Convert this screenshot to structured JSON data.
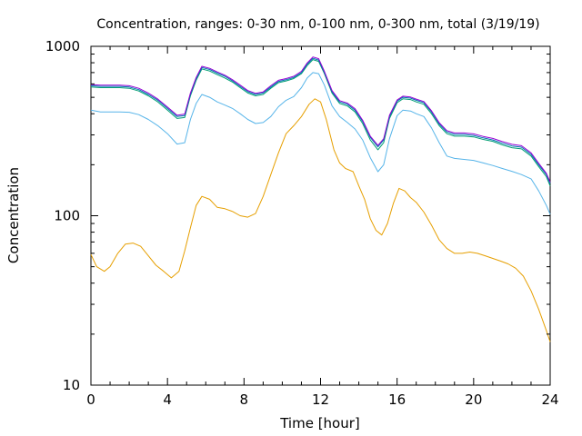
{
  "chart_data": {
    "type": "line",
    "title": "Concentration, ranges: 0-30 nm, 0-100 nm, 0-300 nm, total (3/19/19)",
    "xlabel": "Time [hour]",
    "ylabel": "Concentration",
    "xlim": [
      0,
      24
    ],
    "ylim": [
      10,
      1000
    ],
    "yscale": "log",
    "grid": false,
    "legend": "none",
    "x_ticks": [
      0,
      4,
      8,
      12,
      16,
      20,
      24
    ],
    "x_tick_labels": [
      "0",
      "4",
      "8",
      "12",
      "16",
      "20",
      "24"
    ],
    "y_ticks": [
      10,
      100,
      1000
    ],
    "y_tick_labels": [
      "10",
      "100",
      "1000"
    ],
    "series": [
      {
        "color": "#e69f00",
        "x": [
          0,
          0.3,
          0.7,
          1.0,
          1.4,
          1.8,
          2.2,
          2.6,
          3.0,
          3.4,
          3.8,
          4.2,
          4.6,
          4.9,
          5.2,
          5.5,
          5.8,
          6.2,
          6.6,
          7.0,
          7.4,
          7.8,
          8.2,
          8.6,
          9.0,
          9.4,
          9.8,
          10.2,
          10.6,
          11.0,
          11.4,
          11.7,
          12.0,
          12.3,
          12.7,
          13.0,
          13.3,
          13.7,
          14.0,
          14.3,
          14.6,
          14.9,
          15.2,
          15.5,
          15.8,
          16.1,
          16.4,
          16.7,
          17.0,
          17.4,
          17.8,
          18.2,
          18.6,
          19.0,
          19.4,
          19.8,
          20.2,
          20.6,
          21.0,
          21.4,
          21.8,
          22.2,
          22.6,
          23.0,
          23.4,
          23.8,
          24.0
        ],
        "values": [
          59,
          50,
          47,
          50,
          60,
          68,
          69,
          66,
          58,
          51,
          47,
          43,
          47,
          62,
          85,
          115,
          130,
          125,
          112,
          110,
          106,
          100,
          98,
          103,
          130,
          175,
          235,
          305,
          340,
          385,
          455,
          490,
          470,
          370,
          245,
          205,
          190,
          182,
          150,
          125,
          96,
          82,
          77,
          90,
          118,
          145,
          140,
          128,
          120,
          105,
          88,
          72,
          64,
          60,
          60,
          61,
          60,
          58,
          56,
          54,
          52,
          49,
          44,
          36,
          28,
          21,
          18
        ]
      },
      {
        "color": "#56b4e9",
        "x": [
          0,
          0.5,
          1.0,
          1.5,
          2.0,
          2.5,
          3.0,
          3.5,
          4.0,
          4.5,
          4.9,
          5.2,
          5.5,
          5.8,
          6.2,
          6.6,
          7.0,
          7.4,
          7.8,
          8.2,
          8.6,
          9.0,
          9.4,
          9.8,
          10.2,
          10.6,
          11.0,
          11.3,
          11.6,
          11.9,
          12.2,
          12.6,
          13.0,
          13.4,
          13.8,
          14.2,
          14.6,
          15.0,
          15.3,
          15.6,
          16.0,
          16.3,
          16.7,
          17.0,
          17.4,
          17.8,
          18.2,
          18.6,
          19.0,
          19.5,
          20.0,
          20.5,
          21.0,
          21.5,
          22.0,
          22.5,
          23.0,
          23.4,
          23.8,
          24.0
        ],
        "values": [
          420,
          410,
          410,
          410,
          408,
          395,
          370,
          340,
          305,
          265,
          270,
          370,
          460,
          520,
          500,
          470,
          450,
          430,
          400,
          370,
          350,
          355,
          385,
          440,
          480,
          505,
          570,
          650,
          700,
          690,
          590,
          445,
          385,
          355,
          325,
          280,
          220,
          182,
          200,
          285,
          390,
          420,
          415,
          400,
          385,
          330,
          270,
          225,
          218,
          215,
          212,
          205,
          198,
          190,
          183,
          175,
          165,
          140,
          115,
          102
        ]
      },
      {
        "color": "#009e73",
        "x": [
          0,
          0.5,
          1.0,
          1.5,
          2.0,
          2.5,
          3.0,
          3.5,
          4.0,
          4.5,
          4.9,
          5.2,
          5.5,
          5.8,
          6.2,
          6.6,
          7.0,
          7.4,
          7.8,
          8.2,
          8.6,
          9.0,
          9.4,
          9.8,
          10.2,
          10.6,
          11.0,
          11.3,
          11.6,
          11.9,
          12.2,
          12.6,
          13.0,
          13.4,
          13.8,
          14.2,
          14.6,
          15.0,
          15.3,
          15.6,
          16.0,
          16.3,
          16.7,
          17.0,
          17.4,
          17.8,
          18.2,
          18.6,
          19.0,
          19.5,
          20.0,
          20.5,
          21.0,
          21.5,
          22.0,
          22.5,
          23.0,
          23.4,
          23.8,
          24.0
        ],
        "values": [
          575,
          570,
          570,
          570,
          565,
          545,
          510,
          470,
          420,
          375,
          380,
          510,
          630,
          735,
          715,
          680,
          650,
          615,
          570,
          530,
          510,
          520,
          565,
          610,
          625,
          645,
          690,
          770,
          835,
          815,
          690,
          530,
          460,
          445,
          410,
          350,
          280,
          245,
          270,
          375,
          465,
          490,
          485,
          470,
          455,
          400,
          340,
          305,
          295,
          295,
          292,
          282,
          275,
          262,
          252,
          248,
          225,
          195,
          170,
          150
        ]
      },
      {
        "color": "#0072b2",
        "x": [
          0,
          0.5,
          1.0,
          1.5,
          2.0,
          2.5,
          3.0,
          3.5,
          4.0,
          4.5,
          4.9,
          5.2,
          5.5,
          5.8,
          6.2,
          6.6,
          7.0,
          7.4,
          7.8,
          8.2,
          8.6,
          9.0,
          9.4,
          9.8,
          10.2,
          10.6,
          11.0,
          11.3,
          11.6,
          11.9,
          12.2,
          12.6,
          13.0,
          13.4,
          13.8,
          14.2,
          14.6,
          15.0,
          15.3,
          15.6,
          16.0,
          16.3,
          16.7,
          17.0,
          17.4,
          17.8,
          18.2,
          18.6,
          19.0,
          19.5,
          20.0,
          20.5,
          21.0,
          21.5,
          22.0,
          22.5,
          23.0,
          23.4,
          23.8,
          24.0
        ],
        "values": [
          585,
          580,
          580,
          580,
          575,
          555,
          520,
          480,
          430,
          385,
          390,
          520,
          645,
          750,
          730,
          695,
          665,
          625,
          580,
          540,
          520,
          530,
          575,
          620,
          635,
          655,
          700,
          785,
          850,
          830,
          700,
          540,
          470,
          455,
          420,
          360,
          290,
          255,
          280,
          385,
          475,
          500,
          495,
          480,
          465,
          410,
          348,
          312,
          302,
          302,
          298,
          288,
          280,
          268,
          258,
          254,
          230,
          200,
          175,
          155
        ]
      },
      {
        "color": "#9400d3",
        "x": [
          0,
          0.5,
          1.0,
          1.5,
          2.0,
          2.5,
          3.0,
          3.5,
          4.0,
          4.5,
          4.9,
          5.2,
          5.5,
          5.8,
          6.2,
          6.6,
          7.0,
          7.4,
          7.8,
          8.2,
          8.6,
          9.0,
          9.4,
          9.8,
          10.2,
          10.6,
          11.0,
          11.3,
          11.6,
          11.9,
          12.2,
          12.6,
          13.0,
          13.4,
          13.8,
          14.2,
          14.6,
          15.0,
          15.3,
          15.6,
          16.0,
          16.3,
          16.7,
          17.0,
          17.4,
          17.8,
          18.2,
          18.6,
          19.0,
          19.5,
          20.0,
          20.5,
          21.0,
          21.5,
          22.0,
          22.5,
          23.0,
          23.4,
          23.8,
          24.0
        ],
        "values": [
          595,
          590,
          590,
          590,
          585,
          565,
          530,
          488,
          438,
          392,
          398,
          530,
          655,
          762,
          742,
          706,
          675,
          635,
          590,
          548,
          528,
          538,
          585,
          630,
          645,
          665,
          712,
          798,
          865,
          845,
          712,
          548,
          478,
          462,
          428,
          366,
          295,
          260,
          285,
          392,
          482,
          508,
          502,
          488,
          472,
          416,
          354,
          318,
          308,
          308,
          304,
          294,
          286,
          274,
          264,
          259,
          235,
          204,
          178,
          158
        ]
      }
    ]
  }
}
